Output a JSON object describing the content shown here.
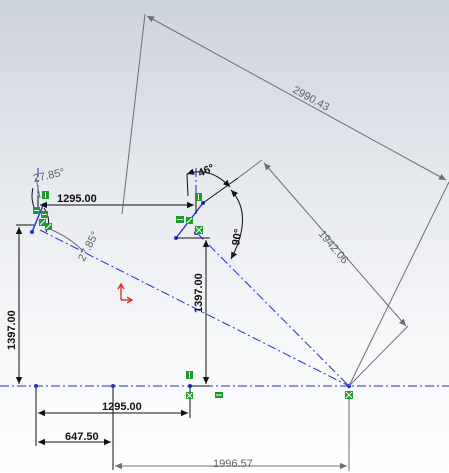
{
  "sketch": {
    "dimensions": {
      "top_horizontal": "1295.00",
      "bottom_horizontal": "1295.00",
      "bottom_half": "647.50",
      "bottom_overall": "1996.57",
      "left_vertical": "1397.00",
      "middle_vertical": "1397.00",
      "long_diagonal": "2990.43",
      "right_diagonal": "1942.06",
      "angle_top_left": "27.85°",
      "angle_lower_left": "27.85°",
      "angle_top_right": "46°",
      "angle_right": "90°"
    },
    "colors": {
      "sketch_line": "#1f2fd0",
      "dimension_black": "#111111",
      "dimension_grey": "#6b6f75",
      "relation_green": "#1c9c2c",
      "origin_red": "#e02020"
    },
    "icons": [
      "sketch-origin-icon",
      "relation-icon"
    ]
  }
}
